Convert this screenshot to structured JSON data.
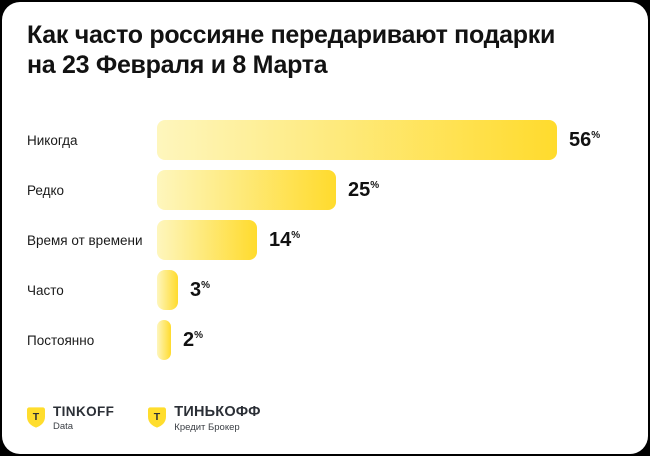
{
  "header": {
    "title_line1": "Как часто россияне передаривают подарки",
    "title_line2": "на 23 Февраля и 8 Марта"
  },
  "chart_data": {
    "type": "bar",
    "orientation": "horizontal",
    "title": "Как часто россияне передаривают подарки на 23 Февраля и 8 Марта",
    "categories": [
      "Никогда",
      "Редко",
      "Время от времени",
      "Часто",
      "Постоянно"
    ],
    "values": [
      56,
      25,
      14,
      3,
      2
    ],
    "unit": "%",
    "xlim": [
      0,
      56
    ],
    "grid": false,
    "legend": false,
    "value_labels": "right-of-bar, superscript percent sign",
    "bar_color_start": "#FEF6BD",
    "bar_color_end": "#FFDB2D"
  },
  "footer": {
    "shield_color": "#FFDD2D",
    "shield_letter_color": "#2b2f36",
    "logos": [
      {
        "shield_letter": "Т",
        "name": "TINKOFF",
        "sub": "Data"
      },
      {
        "shield_letter": "Т",
        "name": "ТИНЬКОФФ",
        "sub": "Кредит Брокер"
      }
    ]
  },
  "colors": {
    "background": "#000000",
    "card": "#FFFFFF",
    "text": "#121212"
  }
}
